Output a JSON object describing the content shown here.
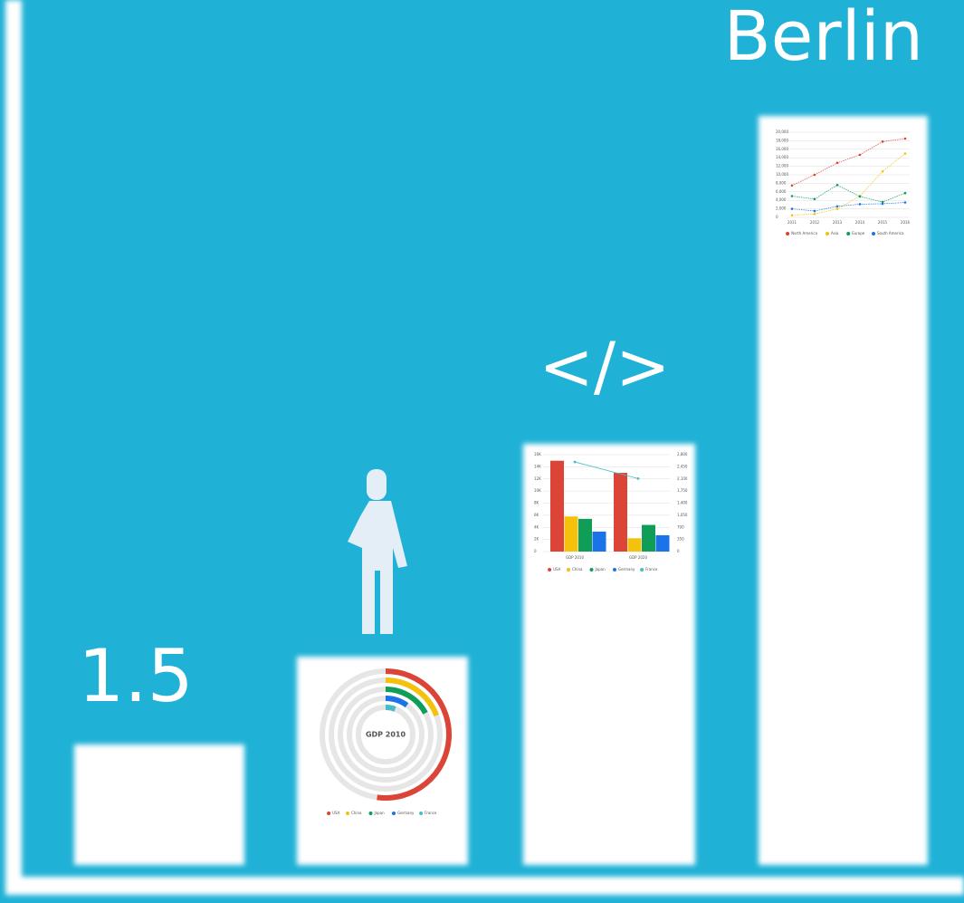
{
  "illustration": {
    "title": "Berlin",
    "value": "1.5",
    "code": "</>"
  },
  "chart_data": [
    {
      "type": "radial",
      "title": "GDP 2010",
      "ylim": [
        0,
        28
      ],
      "series": [
        {
          "name": "USA",
          "color": "#db4437",
          "values": [
            14.6
          ]
        },
        {
          "name": "China",
          "color": "#f4c20d",
          "values": [
            5.4
          ]
        },
        {
          "name": "Japan",
          "color": "#0f9d58",
          "values": [
            4.8
          ]
        },
        {
          "name": "Germany",
          "color": "#1a73e8",
          "values": [
            2.8
          ]
        },
        {
          "name": "France",
          "color": "#46bdc6",
          "values": [
            1.6
          ]
        }
      ]
    },
    {
      "type": "combo",
      "categories": [
        "GDP 2010",
        "GDP 2020"
      ],
      "ylim": [
        0,
        16000
      ],
      "yticks": [
        0,
        {
          "value": 2000,
          "label": "2K"
        },
        {
          "value": 4000,
          "label": "4K"
        },
        {
          "value": 6000,
          "label": "6K"
        },
        {
          "value": 8000,
          "label": "8K"
        },
        {
          "value": 10000,
          "label": "10K"
        },
        {
          "value": 12000,
          "label": "12K"
        },
        {
          "value": 14000,
          "label": "14K"
        },
        {
          "value": 16000,
          "label": "16K"
        }
      ],
      "y2lim": [
        0,
        2800
      ],
      "y2ticks": [
        0,
        350,
        700,
        {
          "value": 1050,
          "label": "1,050"
        },
        {
          "value": 1400,
          "label": "1,400"
        },
        {
          "value": 1750,
          "label": "1,750"
        },
        {
          "value": 2100,
          "label": "2,100"
        },
        {
          "value": 2450,
          "label": "2,450"
        },
        {
          "value": 2800,
          "label": "2,800"
        }
      ],
      "series": [
        {
          "name": "USA",
          "color": "#db4437",
          "values": [
            15000,
            13000
          ]
        },
        {
          "name": "China",
          "color": "#f4c20d",
          "values": [
            5800,
            2200
          ]
        },
        {
          "name": "Japan",
          "color": "#0f9d58",
          "values": [
            5400,
            4400
          ]
        },
        {
          "name": "Germany",
          "color": "#1a73e8",
          "values": [
            3300,
            2700
          ]
        },
        {
          "name": "France",
          "color": "#46bdc6",
          "values": [
            2590,
            2110
          ],
          "axis": "y2"
        }
      ]
    },
    {
      "type": "line",
      "categories": [
        "2011",
        "2012",
        "2013",
        "2014",
        "2015",
        "2016"
      ],
      "ylim": [
        0,
        20000
      ],
      "yticks": [
        0,
        {
          "value": 2000,
          "label": "2,000"
        },
        {
          "value": 4000,
          "label": "4,000"
        },
        {
          "value": 6000,
          "label": "6,000"
        },
        {
          "value": 8000,
          "label": "8,000"
        },
        {
          "value": 10000,
          "label": "10,000"
        },
        {
          "value": 12000,
          "label": "12,000"
        },
        {
          "value": 14000,
          "label": "14,000"
        },
        {
          "value": 16000,
          "label": "16,000"
        },
        {
          "value": 18000,
          "label": "18,000"
        },
        {
          "value": 20000,
          "label": "20,000"
        }
      ],
      "grid": true,
      "series": [
        {
          "name": "North America",
          "color": "#db4437",
          "values": [
            7500,
            10000,
            12800,
            14700,
            17800,
            18500
          ]
        },
        {
          "name": "Asia",
          "color": "#f4c20d",
          "values": [
            500,
            800,
            2000,
            5000,
            10800,
            15000
          ]
        },
        {
          "name": "Europe",
          "color": "#0f9d58",
          "values": [
            5000,
            4300,
            7600,
            4900,
            3600,
            5700
          ]
        },
        {
          "name": "South America",
          "color": "#1a73e8",
          "values": [
            2000,
            1500,
            2600,
            3100,
            3200,
            3500
          ]
        }
      ]
    }
  ]
}
